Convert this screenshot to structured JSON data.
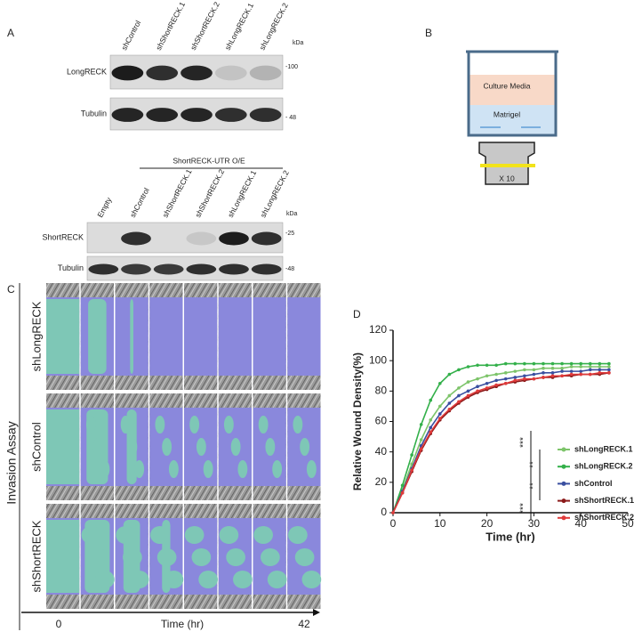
{
  "panel_labels": [
    "A",
    "B",
    "C",
    "D"
  ],
  "panel_a": {
    "blot1": {
      "lanes": [
        "shControl",
        "shShortRECK.1",
        "shShortRECK.2",
        "shLongRECK.1",
        "shLongRECK.2"
      ],
      "unit": "kDa",
      "rows": [
        "LongRECK",
        "Tubulin"
      ],
      "markers": [
        "-100",
        "- 48"
      ]
    },
    "blot2": {
      "header": "ShortRECK-UTR O/E",
      "lanes": [
        "Empty",
        "shControl",
        "shShortRECK.1",
        "shShortRECK.2",
        "shLongRECK.1",
        "shLongRECK.2"
      ],
      "unit": "kDa",
      "rows": [
        "ShortRECK",
        "Tubulin"
      ],
      "markers": [
        "-25",
        "-48"
      ]
    }
  },
  "panel_b": {
    "media": "Culture Media",
    "matrigel": "Matrigel",
    "objective": "X 10"
  },
  "panel_c": {
    "title": "Invasion Assay",
    "rows": [
      "shLongRECK",
      "shControl",
      "shShortRECK"
    ],
    "axis": {
      "start": "0",
      "label": "Time (hr)",
      "end": "42"
    }
  },
  "chart_data": {
    "type": "line",
    "xlabel": "Time (hr)",
    "ylabel": "Relative Wound Density(%)",
    "x": [
      0,
      2,
      4,
      6,
      8,
      10,
      12,
      14,
      16,
      18,
      20,
      22,
      24,
      26,
      28,
      30,
      32,
      34,
      36,
      38,
      40,
      42,
      44,
      46
    ],
    "xlim": [
      0,
      50
    ],
    "xticks": [
      0,
      10,
      20,
      30,
      40,
      50
    ],
    "ylim": [
      0,
      120
    ],
    "yticks": [
      0,
      20,
      40,
      60,
      80,
      100,
      120
    ],
    "series": [
      {
        "name": "shLongRECK.1",
        "color": "#7dc46a",
        "values": [
          0,
          15,
          32,
          48,
          61,
          70,
          77,
          82,
          86,
          88,
          90,
          91,
          92,
          93,
          94,
          94,
          95,
          95,
          95,
          96,
          96,
          96,
          96,
          96
        ]
      },
      {
        "name": "shLongRECK.2",
        "color": "#33b04a",
        "values": [
          0,
          18,
          38,
          58,
          74,
          85,
          91,
          94,
          96,
          97,
          97,
          97,
          98,
          98,
          98,
          98,
          98,
          98,
          98,
          98,
          98,
          98,
          98,
          98
        ]
      },
      {
        "name": "shControl",
        "color": "#3a4fa0",
        "values": [
          0,
          14,
          29,
          44,
          56,
          65,
          72,
          77,
          80,
          83,
          85,
          87,
          88,
          89,
          90,
          91,
          92,
          92,
          93,
          93,
          93,
          94,
          94,
          94
        ]
      },
      {
        "name": "shShortRECK.1",
        "color": "#8b1a1a",
        "values": [
          0,
          13,
          27,
          41,
          52,
          61,
          67,
          72,
          76,
          79,
          81,
          83,
          85,
          86,
          87,
          88,
          89,
          89,
          90,
          90,
          91,
          91,
          91,
          92
        ]
      },
      {
        "name": "shShortRECK.2",
        "color": "#e03a3a",
        "values": [
          0,
          13,
          28,
          42,
          53,
          62,
          68,
          73,
          77,
          80,
          82,
          84,
          85,
          87,
          88,
          88,
          89,
          90,
          90,
          91,
          91,
          91,
          92,
          92
        ]
      }
    ],
    "annotations": [
      "***",
      "**",
      "**",
      "***"
    ]
  }
}
